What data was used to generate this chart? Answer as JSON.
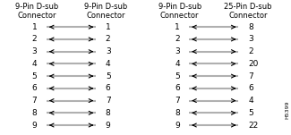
{
  "diagram1": {
    "title_left": "9-Pin D-sub\nConnector",
    "title_right": "9-Pin D-sub\nConnector",
    "left_pins": [
      "1",
      "2",
      "3",
      "4",
      "5",
      "6",
      "7",
      "8",
      "9"
    ],
    "right_pins": [
      "1",
      "2",
      "3",
      "4",
      "5",
      "6",
      "7",
      "8",
      "9"
    ]
  },
  "diagram2": {
    "title_left": "9-Pin D-sub\nConnector",
    "title_right": "25-Pin D-sub\nConnector",
    "left_pins": [
      "1",
      "2",
      "3",
      "4",
      "5",
      "6",
      "7",
      "8",
      "9"
    ],
    "right_pins": [
      "8",
      "3",
      "2",
      "20",
      "7",
      "6",
      "4",
      "5",
      "22"
    ]
  },
  "bg_color": "#ffffff",
  "line_color": "#b0b0b0",
  "arrow_color": "#000000",
  "text_color": "#000000",
  "watermark": "H5399",
  "title_fontsize": 6.0,
  "pin_fontsize": 6.5
}
